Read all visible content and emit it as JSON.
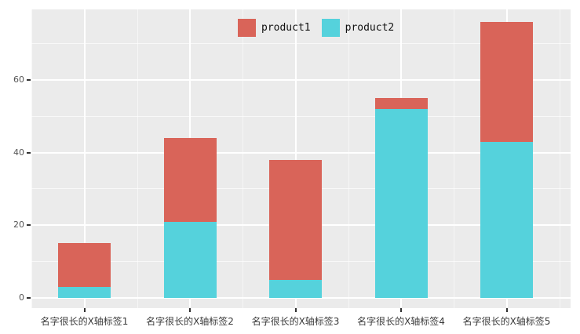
{
  "chart_data": {
    "type": "bar",
    "stacked": true,
    "title": "",
    "xlabel": "",
    "ylabel": "",
    "categories": [
      "名字很长的X轴标签1",
      "名字很长的X轴标签2",
      "名字很长的X轴标签3",
      "名字很长的X轴标签4",
      "名字很长的X轴标签5"
    ],
    "series": [
      {
        "name": "product1",
        "color": "#D96459",
        "values": [
          12,
          23,
          33,
          3,
          33
        ]
      },
      {
        "name": "product2",
        "color": "#55D2DC",
        "values": [
          3,
          21,
          5,
          52,
          43
        ]
      }
    ],
    "stack_order_bottom_to_top": [
      "product2",
      "product1"
    ],
    "stack_totals": [
      15,
      44,
      38,
      55,
      76
    ],
    "ylim": [
      0,
      79
    ],
    "yticks": [
      0,
      20,
      40,
      60
    ],
    "yticks_minor": [
      10,
      30,
      50,
      70
    ],
    "grid": true,
    "legend_position": "top-center",
    "colors": {
      "panel_background": "#EBEBEB",
      "page_background": "#FFFFFF",
      "gridline": "#FFFFFF",
      "tick_text": "#555555",
      "tick_mark": "#333333"
    }
  }
}
